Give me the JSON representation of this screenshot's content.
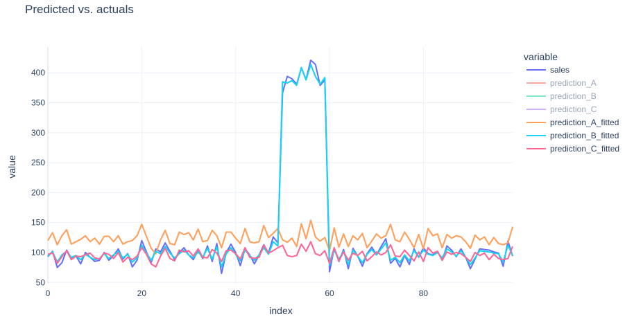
{
  "chart_data": {
    "type": "line",
    "title": "Predicted vs. actuals",
    "xlabel": "index",
    "ylabel": "value",
    "xlim": [
      0,
      99
    ],
    "ylim": [
      48,
      443
    ],
    "x_ticks": [
      0,
      20,
      40,
      60,
      80
    ],
    "y_ticks": [
      50,
      100,
      150,
      200,
      250,
      300,
      350,
      400
    ],
    "legend_title": "variable",
    "legend_position": "right",
    "grid": true,
    "x": [
      0,
      1,
      2,
      3,
      4,
      5,
      6,
      7,
      8,
      9,
      10,
      11,
      12,
      13,
      14,
      15,
      16,
      17,
      18,
      19,
      20,
      21,
      22,
      23,
      24,
      25,
      26,
      27,
      28,
      29,
      30,
      31,
      32,
      33,
      34,
      35,
      36,
      37,
      38,
      39,
      40,
      41,
      42,
      43,
      44,
      45,
      46,
      47,
      48,
      49,
      50,
      51,
      52,
      53,
      54,
      55,
      56,
      57,
      58,
      59,
      60,
      61,
      62,
      63,
      64,
      65,
      66,
      67,
      68,
      69,
      70,
      71,
      72,
      73,
      74,
      75,
      76,
      77,
      78,
      79,
      80,
      81,
      82,
      83,
      84,
      85,
      86,
      87,
      88,
      89,
      90,
      91,
      92,
      93,
      94,
      95,
      96,
      97,
      98,
      99
    ],
    "series": [
      {
        "name": "sales",
        "color": "#636efa",
        "opacity": 1,
        "values": [
          93,
          102,
          75,
          83,
          104,
          91,
          94,
          81,
          100,
          92,
          85,
          87,
          100,
          87,
          95,
          106,
          89,
          98,
          76,
          87,
          120,
          101,
          83,
          106,
          101,
          116,
          102,
          88,
          100,
          108,
          96,
          88,
          104,
          90,
          111,
          85,
          115,
          65,
          100,
          114,
          100,
          78,
          106,
          96,
          81,
          96,
          113,
          99,
          126,
          116,
          367,
          394,
          390,
          381,
          408,
          389,
          421,
          414,
          379,
          388,
          68,
          107,
          85,
          105,
          73,
          107,
          94,
          77,
          98,
          109,
          96,
          110,
          123,
          82,
          90,
          76,
          95,
          80,
          106,
          92,
          108,
          98,
          96,
          102,
          87,
          111,
          104,
          93,
          106,
          92,
          73,
          89,
          106,
          105,
          104,
          101,
          99,
          77,
          119,
          94
        ]
      },
      {
        "name": "prediction_A",
        "color": "#EF553B",
        "opacity": 0.5,
        "values": [
          120,
          133,
          113,
          128,
          138,
          114,
          118,
          122,
          128,
          118,
          124,
          114,
          127,
          127,
          118,
          128,
          114,
          118,
          120,
          128,
          147,
          127,
          107,
          98,
          121,
          137,
          115,
          113,
          134,
          130,
          133,
          121,
          139,
          118,
          120,
          137,
          128,
          108,
          134,
          134,
          124,
          115,
          140,
          118,
          116,
          118,
          145,
          125,
          132,
          140,
          121,
          117,
          124,
          110,
          148,
          123,
          154,
          126,
          119,
          125,
          103,
          141,
          109,
          131,
          110,
          128,
          121,
          132,
          108,
          119,
          131,
          124,
          128,
          147,
          121,
          118,
          134,
          122,
          108,
          130,
          106,
          140,
          128,
          131,
          108,
          130,
          124,
          128,
          126,
          118,
          107,
          129,
          121,
          126,
          113,
          125,
          115,
          113,
          116,
          143
        ]
      },
      {
        "name": "prediction_B",
        "color": "#00cc96",
        "opacity": 0.5,
        "values": [
          94,
          101,
          84,
          96,
          102,
          92,
          95,
          88,
          97,
          92,
          88,
          90,
          98,
          90,
          96,
          102,
          91,
          97,
          84,
          91,
          112,
          99,
          87,
          102,
          98,
          110,
          99,
          91,
          98,
          104,
          96,
          91,
          101,
          92,
          107,
          89,
          109,
          76,
          98,
          108,
          97,
          86,
          104,
          95,
          87,
          96,
          108,
          97,
          118,
          111,
          385,
          383,
          387,
          379,
          409,
          388,
          414,
          394,
          381,
          392,
          79,
          104,
          89,
          102,
          80,
          104,
          94,
          83,
          97,
          105,
          96,
          106,
          116,
          87,
          92,
          83,
          96,
          86,
          103,
          93,
          104,
          97,
          95,
          100,
          91,
          106,
          101,
          94,
          103,
          92,
          80,
          91,
          103,
          102,
          101,
          99,
          98,
          84,
          112,
          95
        ]
      },
      {
        "name": "prediction_C",
        "color": "#ab63fa",
        "opacity": 0.5,
        "values": [
          97,
          99,
          82,
          93,
          103,
          88,
          94,
          93,
          96,
          99,
          91,
          89,
          99,
          97,
          90,
          100,
          84,
          92,
          88,
          94,
          108,
          97,
          81,
          76,
          94,
          107,
          90,
          86,
          104,
          101,
          103,
          94,
          106,
          92,
          91,
          105,
          99,
          85,
          103,
          104,
          98,
          89,
          108,
          92,
          90,
          92,
          112,
          99,
          103,
          108,
          112,
          95,
          93,
          95,
          114,
          102,
          118,
          98,
          95,
          103,
          82,
          108,
          86,
          101,
          87,
          99,
          95,
          102,
          86,
          93,
          101,
          96,
          100,
          113,
          94,
          93,
          104,
          95,
          86,
          101,
          85,
          108,
          99,
          102,
          87,
          101,
          97,
          100,
          98,
          92,
          85,
          100,
          95,
          99,
          88,
          97,
          90,
          88,
          90,
          110
        ]
      },
      {
        "name": "prediction_A_fitted",
        "color": "#FFA15A",
        "opacity": 1,
        "values": [
          120,
          133,
          113,
          128,
          138,
          114,
          118,
          122,
          128,
          118,
          124,
          114,
          127,
          127,
          118,
          128,
          114,
          118,
          120,
          128,
          147,
          127,
          107,
          98,
          121,
          137,
          115,
          113,
          134,
          130,
          133,
          121,
          139,
          118,
          120,
          137,
          128,
          108,
          134,
          134,
          124,
          115,
          140,
          118,
          116,
          118,
          145,
          125,
          132,
          140,
          121,
          117,
          124,
          110,
          148,
          123,
          154,
          126,
          119,
          125,
          103,
          141,
          109,
          131,
          110,
          128,
          121,
          132,
          108,
          119,
          131,
          124,
          128,
          147,
          121,
          118,
          134,
          122,
          108,
          130,
          106,
          140,
          128,
          131,
          108,
          130,
          124,
          128,
          126,
          118,
          107,
          129,
          121,
          126,
          113,
          125,
          115,
          113,
          116,
          143
        ]
      },
      {
        "name": "prediction_B_fitted",
        "color": "#19d3f3",
        "opacity": 1,
        "values": [
          94,
          101,
          84,
          96,
          102,
          92,
          95,
          88,
          97,
          92,
          88,
          90,
          98,
          90,
          96,
          102,
          91,
          97,
          84,
          91,
          112,
          99,
          87,
          102,
          98,
          110,
          99,
          91,
          98,
          104,
          96,
          91,
          101,
          92,
          107,
          89,
          109,
          76,
          98,
          108,
          97,
          86,
          104,
          95,
          87,
          96,
          108,
          97,
          118,
          111,
          385,
          383,
          387,
          379,
          409,
          388,
          414,
          394,
          381,
          392,
          79,
          104,
          89,
          102,
          80,
          104,
          94,
          83,
          97,
          105,
          96,
          106,
          116,
          87,
          92,
          83,
          96,
          86,
          103,
          93,
          104,
          97,
          95,
          100,
          91,
          106,
          101,
          94,
          103,
          92,
          80,
          91,
          103,
          102,
          101,
          99,
          98,
          84,
          112,
          95
        ]
      },
      {
        "name": "prediction_C_fitted",
        "color": "#FF6692",
        "opacity": 1,
        "values": [
          97,
          99,
          82,
          93,
          103,
          88,
          94,
          93,
          96,
          99,
          91,
          89,
          99,
          97,
          90,
          100,
          84,
          92,
          88,
          94,
          108,
          97,
          81,
          76,
          94,
          107,
          90,
          86,
          104,
          101,
          103,
          94,
          106,
          92,
          91,
          105,
          99,
          85,
          103,
          104,
          98,
          89,
          108,
          92,
          90,
          92,
          112,
          99,
          103,
          108,
          112,
          95,
          93,
          95,
          114,
          102,
          118,
          98,
          95,
          103,
          82,
          108,
          86,
          101,
          87,
          99,
          95,
          102,
          86,
          93,
          101,
          96,
          100,
          113,
          94,
          93,
          104,
          95,
          86,
          101,
          85,
          108,
          99,
          102,
          87,
          101,
          97,
          100,
          98,
          92,
          85,
          100,
          95,
          99,
          88,
          97,
          90,
          88,
          90,
          110
        ]
      }
    ]
  }
}
